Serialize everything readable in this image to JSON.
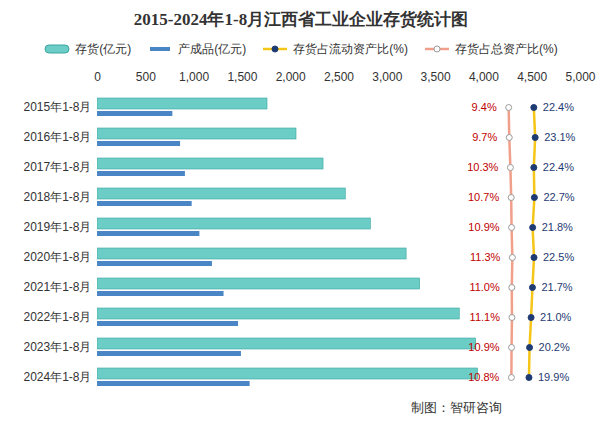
{
  "chart_data": {
    "type": "bar",
    "title": "2015-2024年1-8月江西省工业企业存货统计图",
    "orientation": "horizontal",
    "categories": [
      "2015年1-8月",
      "2016年1-8月",
      "2017年1-8月",
      "2018年1-8月",
      "2019年1-8月",
      "2020年1-8月",
      "2021年1-8月",
      "2022年1-8月",
      "2023年1-8月",
      "2024年1-8月"
    ],
    "series": [
      {
        "name": "存货(亿元)",
        "color": "#6ccdc6",
        "values": [
          1760,
          2060,
          2340,
          2570,
          2830,
          3200,
          3340,
          3750,
          3920,
          3940
        ]
      },
      {
        "name": "产成品(亿元)",
        "color": "#4a86c5",
        "values": [
          780,
          860,
          910,
          980,
          1060,
          1190,
          1310,
          1460,
          1490,
          1580
        ]
      },
      {
        "name": "存货占流动资产比(%)",
        "type": "line",
        "axis": "x2",
        "color": "#f5c518",
        "marker": "circle",
        "data_labels": true,
        "values": [
          22.4,
          23.1,
          22.4,
          22.7,
          21.8,
          22.5,
          21.7,
          21.0,
          20.2,
          19.9
        ],
        "value_labels": [
          "22.4%",
          "23.1%",
          "22.4%",
          "22.7%",
          "21.8%",
          "22.5%",
          "21.7%",
          "21.0%",
          "20.2%",
          "19.9%"
        ]
      },
      {
        "name": "存货占总资产比(%)",
        "type": "line",
        "axis": "x2",
        "color": "#f0a08a",
        "marker": "circle",
        "data_labels": true,
        "values": [
          9.4,
          9.7,
          10.3,
          10.7,
          10.9,
          11.3,
          11.0,
          11.1,
          10.9,
          10.8
        ],
        "value_labels": [
          "9.4%",
          "9.7%",
          "10.3%",
          "10.7%",
          "10.9%",
          "11.3%",
          "11.0%",
          "11.1%",
          "10.9%",
          "10.8%"
        ]
      }
    ],
    "xlim": [
      0,
      5000
    ],
    "xticks": [
      0,
      500,
      1000,
      1500,
      2000,
      2500,
      3000,
      3500,
      4000,
      4500,
      5000
    ],
    "x2lim": [
      0,
      30
    ],
    "x2ticks": [],
    "legend": "top",
    "caption": "制图：智研咨询"
  }
}
